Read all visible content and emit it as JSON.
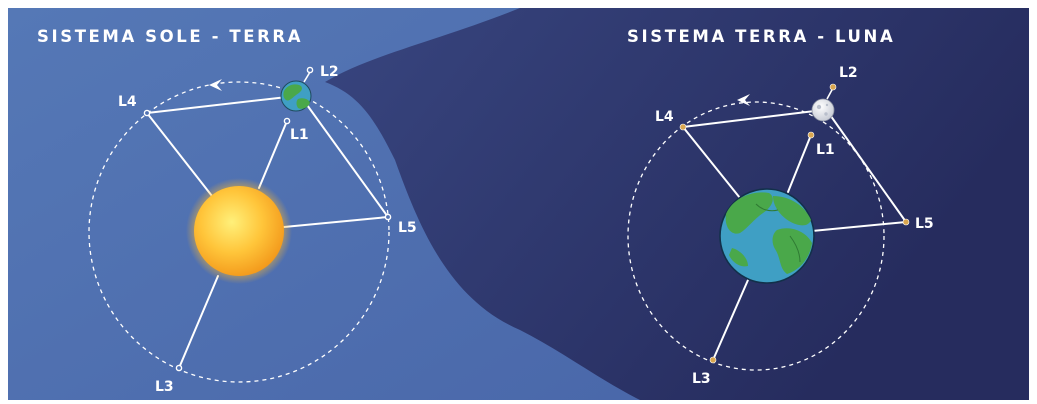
{
  "left_panel": {
    "title": "SISTEMA SOLE - TERRA",
    "labels": {
      "L1": "L1",
      "L2": "L2",
      "L3": "L3",
      "L4": "L4",
      "L5": "L5"
    }
  },
  "right_panel": {
    "title": "SISTEMA TERRA - LUNA",
    "labels": {
      "L1": "L1",
      "L2": "L2",
      "L3": "L3",
      "L4": "L4",
      "L5": "L5"
    }
  },
  "colors": {
    "left_background": "#5273b3",
    "right_background": "#2e3769",
    "sun": "#f7b731",
    "earth_ocean": "#3f9fc4",
    "earth_land": "#4aa84a",
    "moon": "#e6e9ef",
    "orbit": "#ffffff",
    "point_left": "#ffffff",
    "point_right": "#d9a64f"
  },
  "icons": {
    "sun": "sun-icon",
    "earth": "earth-icon",
    "moon": "moon-icon",
    "orbit_direction": "arrow-left-icon"
  }
}
